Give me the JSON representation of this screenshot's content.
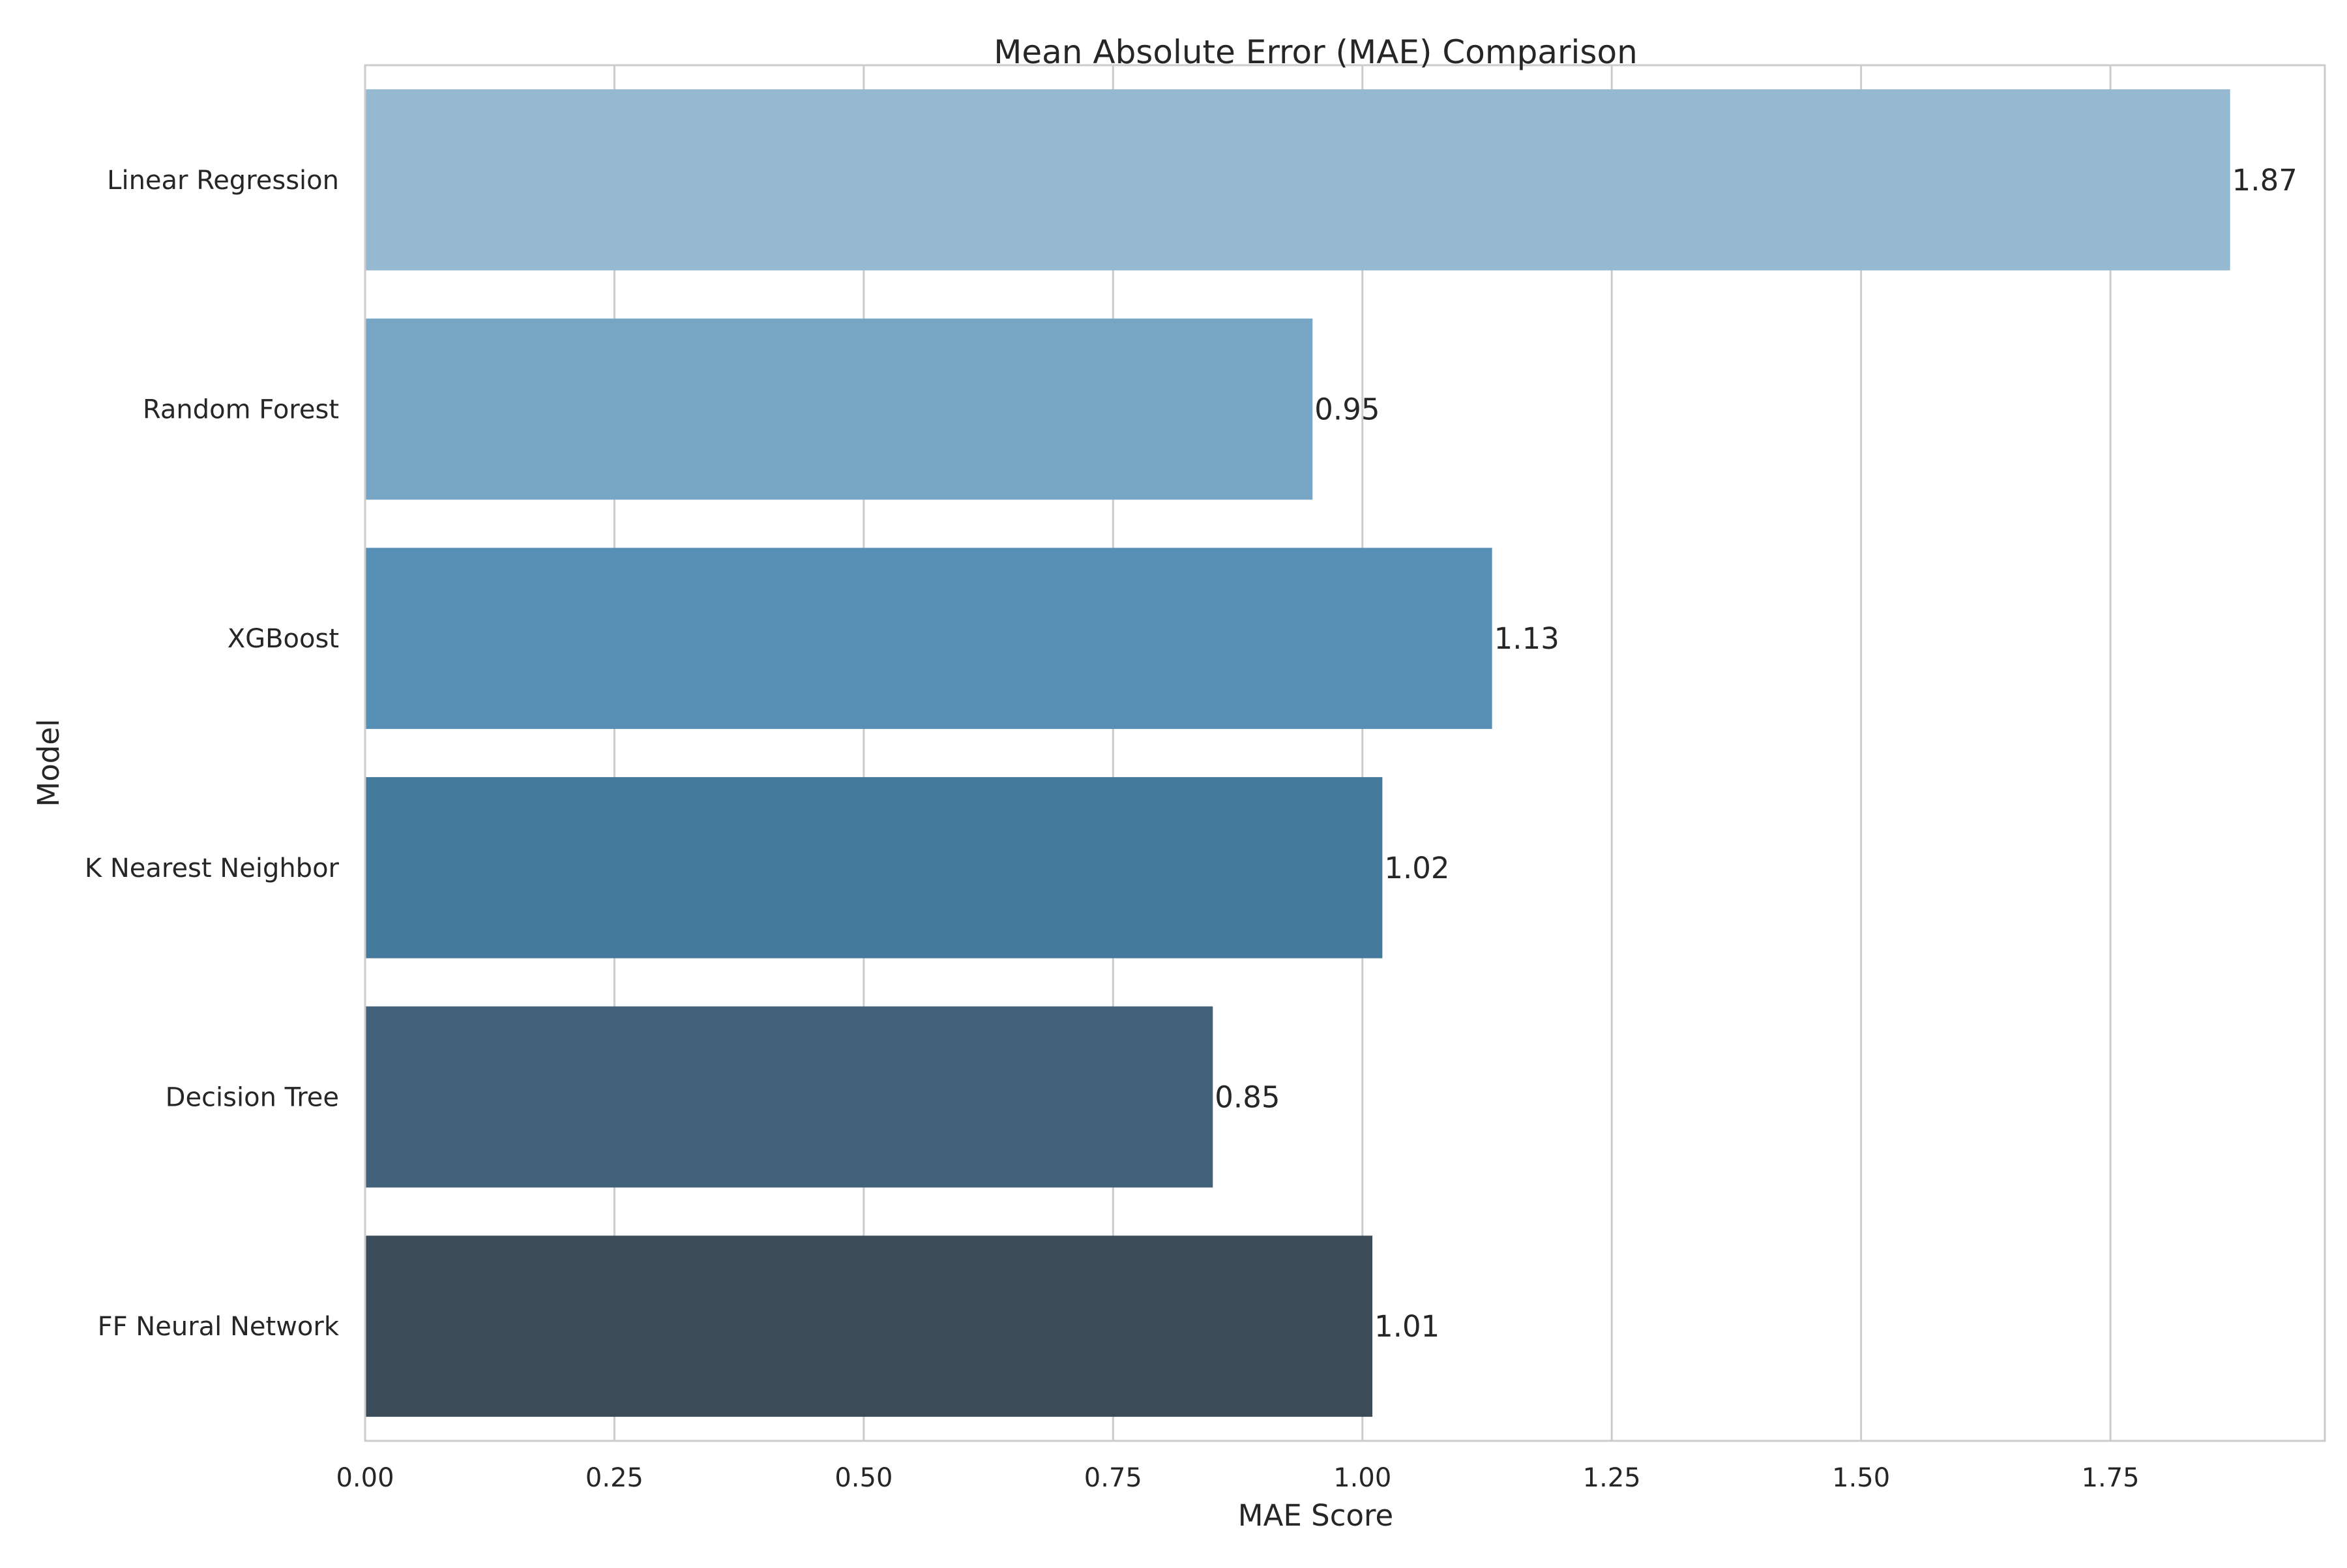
{
  "chart_data": {
    "type": "bar",
    "orientation": "horizontal",
    "title": "Mean Absolute Error (MAE) Comparison",
    "xlabel": "MAE Score",
    "ylabel": "Model",
    "categories": [
      "Linear Regression",
      "Random Forest",
      "XGBoost",
      "K Nearest Neighbor",
      "Decision Tree",
      "FF Neural Network"
    ],
    "values": [
      1.87,
      0.95,
      1.13,
      1.02,
      0.85,
      1.01
    ],
    "data_labels": [
      "1.87",
      "0.95",
      "1.13",
      "1.02",
      "0.85",
      "1.01"
    ],
    "colors": [
      "#96b9d2",
      "#77a5c4",
      "#588fb5",
      "#457a9d",
      "#416279",
      "#3b4b58"
    ],
    "xlim": [
      0,
      1.965
    ],
    "xticks": [
      0,
      0.25,
      0.5,
      0.75,
      1.0,
      1.25,
      1.5,
      1.75
    ],
    "xtick_labels": [
      "0.00",
      "0.25",
      "0.50",
      "0.75",
      "1.00",
      "1.25",
      "1.50",
      "1.75"
    ],
    "grid": true,
    "grid_color": "#cccccc",
    "spine_color": "#cccccc",
    "legend": "none"
  }
}
